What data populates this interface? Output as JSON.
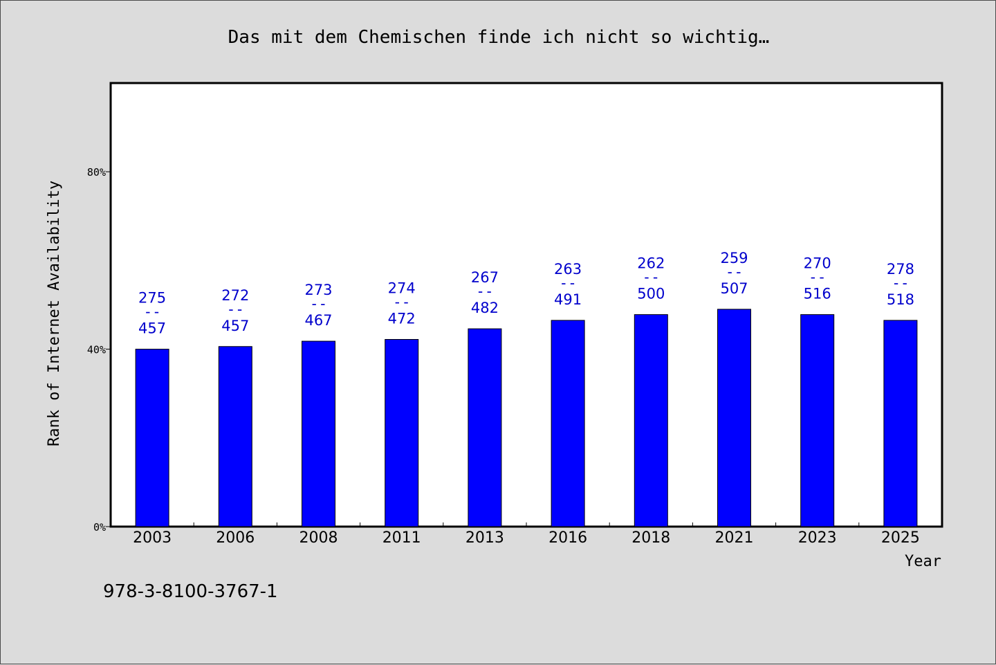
{
  "chart_data": {
    "type": "bar",
    "title": "Das mit dem Chemischen finde ich nicht so wichtig…",
    "xlabel": "Year",
    "ylabel": "Rank of Internet Availability",
    "ylim": [
      0,
      100
    ],
    "yticks": [
      0,
      40,
      80
    ],
    "ytick_labels": [
      "0%",
      "40%",
      "80%"
    ],
    "categories": [
      "2003",
      "2006",
      "2008",
      "2011",
      "2013",
      "2016",
      "2018",
      "2021",
      "2023",
      "2025"
    ],
    "values": [
      40,
      40.6,
      41.8,
      42.2,
      44.6,
      46.5,
      47.8,
      49,
      47.8,
      46.5
    ],
    "label_top": [
      "275",
      "272",
      "273",
      "274",
      "267",
      "263",
      "262",
      "259",
      "270",
      "278"
    ],
    "label_sep": "--",
    "label_bottom": [
      "457",
      "457",
      "467",
      "472",
      "482",
      "491",
      "500",
      "507",
      "516",
      "518"
    ],
    "bar_color": "#0000ff",
    "label_color": "#0000cc",
    "grid": false,
    "legend": "none",
    "annotation": "978-3-8100-3767-1"
  }
}
